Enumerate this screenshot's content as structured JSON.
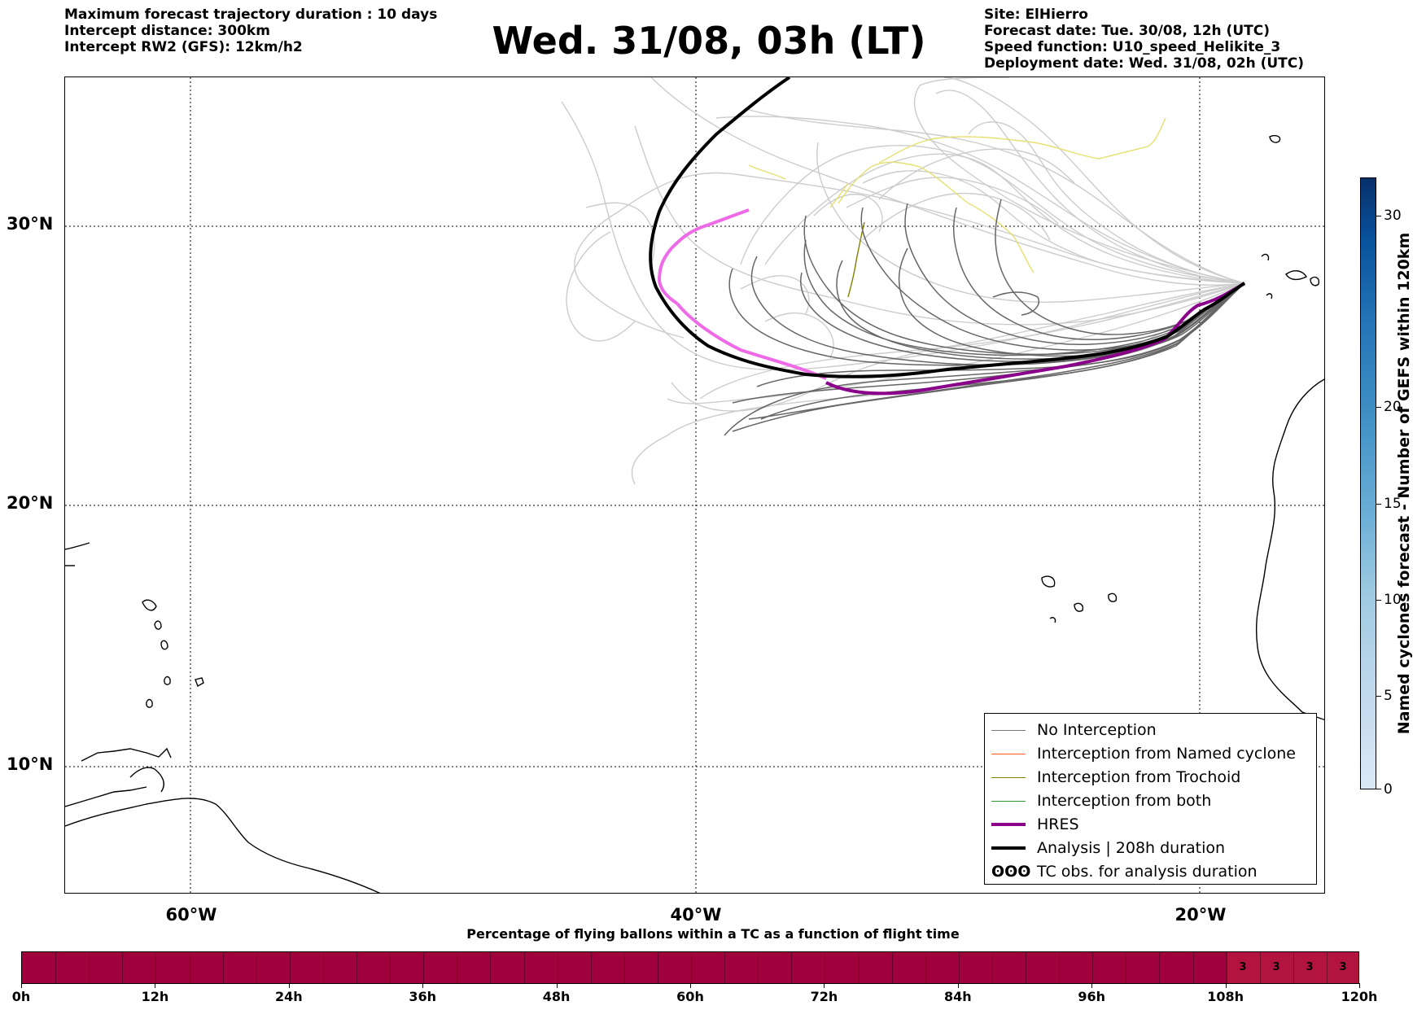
{
  "header_left": [
    "Maximum forecast trajectory duration : 10 days",
    "Intercept distance: 300km",
    "Intercept RW2 (GFS):  12km/h2"
  ],
  "title": "Wed. 31/08, 03h (LT)",
  "header_right": [
    "Site: ElHierro",
    "Forecast date: Tue. 30/08, 12h (UTC)",
    "Speed function: U10_speed_Helikite_3",
    "Deployment date: Wed. 31/08, 02h (UTC)"
  ],
  "map": {
    "lat_labels": [
      "30°N",
      "20°N",
      "10°N"
    ],
    "lon_labels": [
      "60°W",
      "40°W",
      "20°W"
    ],
    "lat_range": [
      5,
      35
    ],
    "lon_range": [
      -65,
      -15
    ]
  },
  "legend": [
    {
      "label": "No Interception",
      "color": "#777777",
      "style": "thin"
    },
    {
      "label": "Interception from Named cyclone",
      "color": "#ff5a1f",
      "style": "thin"
    },
    {
      "label": "Interception from Trochoid",
      "color": "#808000",
      "style": "thin"
    },
    {
      "label": "Interception from both",
      "color": "#2a9a2a",
      "style": "thin"
    },
    {
      "label": "HRES",
      "color": "#8b008b",
      "style": "thick"
    },
    {
      "label": "Analysis | 208h duration",
      "color": "#000000",
      "style": "thick"
    },
    {
      "label": "TC obs. for analysis duration",
      "color": "#000000",
      "style": "symbol",
      "symbol": "ʘʘʘ"
    }
  ],
  "colorbar": {
    "title": "Named cyclones forecast - Number of GEFS within 120km",
    "ticks": [
      "0",
      "5",
      "10",
      "15",
      "20",
      "30"
    ],
    "colors": [
      "#dbe9f6",
      "#c6dbef",
      "#9ecae1",
      "#6baed6",
      "#4292c6",
      "#2171b5",
      "#08519c",
      "#08306b"
    ]
  },
  "bottom": {
    "title": "Percentage of flying ballons within a TC as a function of flight time",
    "tick_labels": [
      "0h",
      "12h",
      "24h",
      "36h",
      "48h",
      "60h",
      "72h",
      "84h",
      "96h",
      "108h",
      "120h"
    ],
    "highlight_values": [
      "3",
      "3",
      "3",
      "3"
    ],
    "base_color": "#a0003c",
    "highlight_color": "#b3143f"
  }
}
